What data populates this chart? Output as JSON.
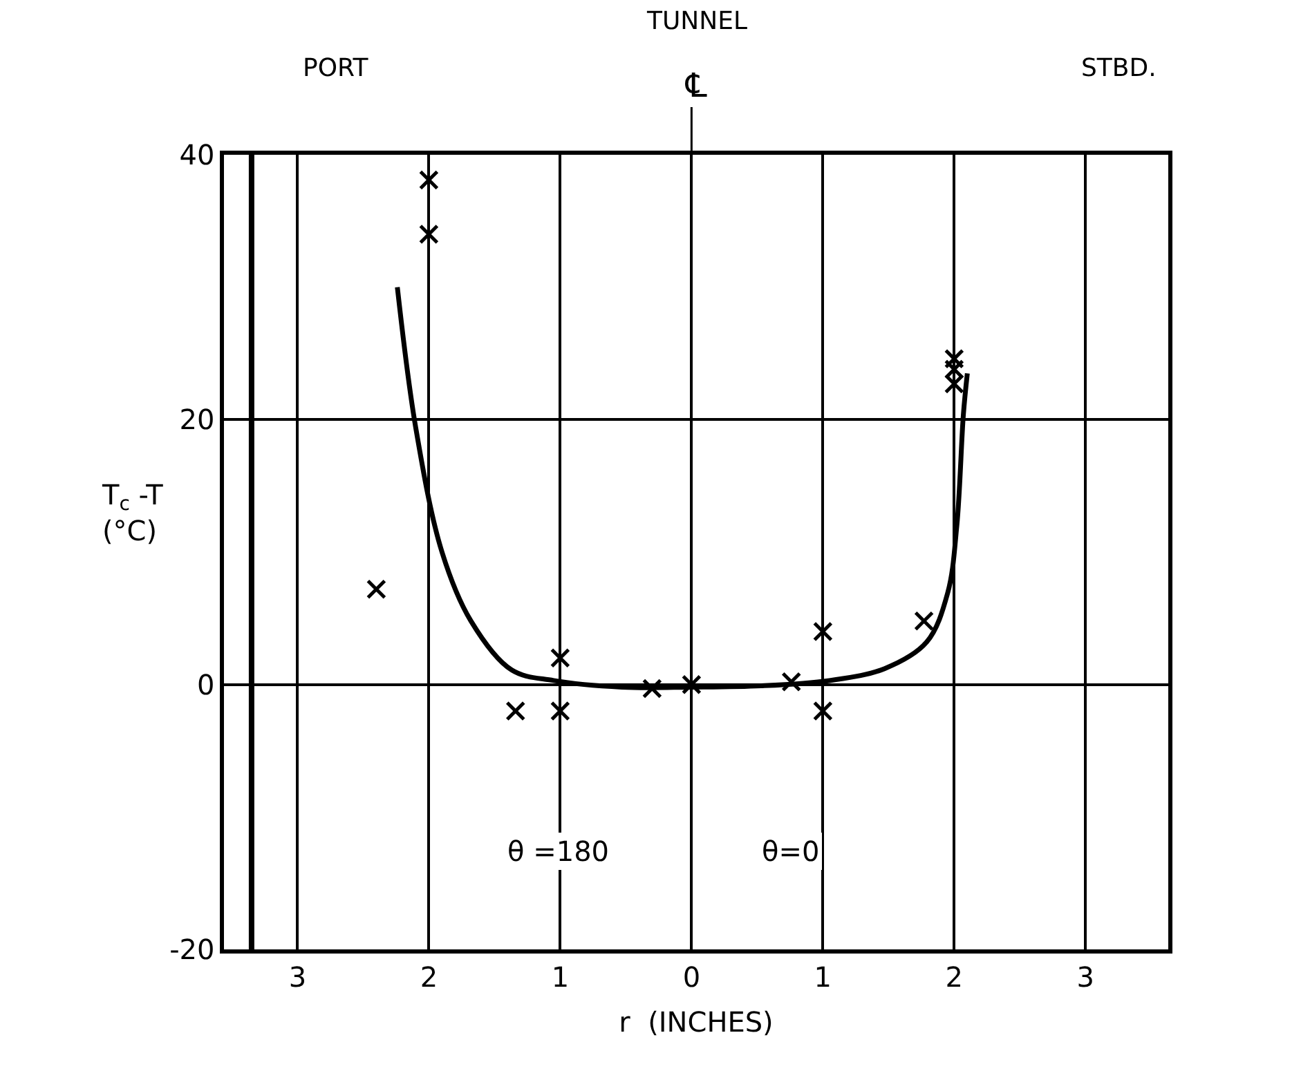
{
  "chart_data": {
    "type": "scatter",
    "xlabel": "r  (INCHES)",
    "ylabel": "T$_{c}$ -T\n(°C)",
    "xlim": [
      -3.56,
      3.63
    ],
    "ylim": [
      -20,
      40
    ],
    "xticks": [
      {
        "value": -3,
        "label": "3"
      },
      {
        "value": -2,
        "label": "2"
      },
      {
        "value": -1,
        "label": "1"
      },
      0,
      {
        "value": 1,
        "label": "1"
      },
      {
        "value": 2,
        "label": "2"
      },
      {
        "value": 3,
        "label": "3"
      }
    ],
    "yticks": [
      -20,
      0,
      20,
      40
    ],
    "grid": true,
    "series": [
      {
        "marker": "cross",
        "color": "#000000",
        "x": [
          -2.4,
          -2,
          -2,
          -1.34,
          -1,
          -1,
          -0.3,
          0,
          0.76,
          1,
          1,
          1.77,
          2,
          2,
          2
        ],
        "values": [
          7.2,
          38.1,
          34,
          -2,
          2,
          -2,
          -0.3,
          0,
          0.2,
          4,
          -2,
          4.8,
          24.6,
          23.8,
          22.7
        ]
      },
      {
        "type": "line",
        "color": "#000000",
        "x": [
          -2.24,
          -2.1,
          -1.9,
          -1.68,
          -1.37,
          -1.05,
          -0.53,
          0,
          0.53,
          1.05,
          1.47,
          1.79,
          1.95,
          2.02,
          2.07,
          2.1
        ],
        "values": [
          30,
          19.4,
          10,
          4.8,
          1.1,
          0.3,
          -0.2,
          -0.2,
          -0.1,
          0.3,
          1.2,
          3.2,
          6.9,
          12,
          20.4,
          23.5
        ]
      }
    ],
    "ref_lines": [
      {
        "axis": "x",
        "value": -3.35,
        "color": "#000000"
      },
      {
        "axis": "x",
        "value": 0,
        "color": "#000000"
      }
    ],
    "annotations": [
      "PORT",
      "TUNNEL",
      "℄",
      "STBD.",
      "θ =180",
      "θ=0"
    ]
  }
}
